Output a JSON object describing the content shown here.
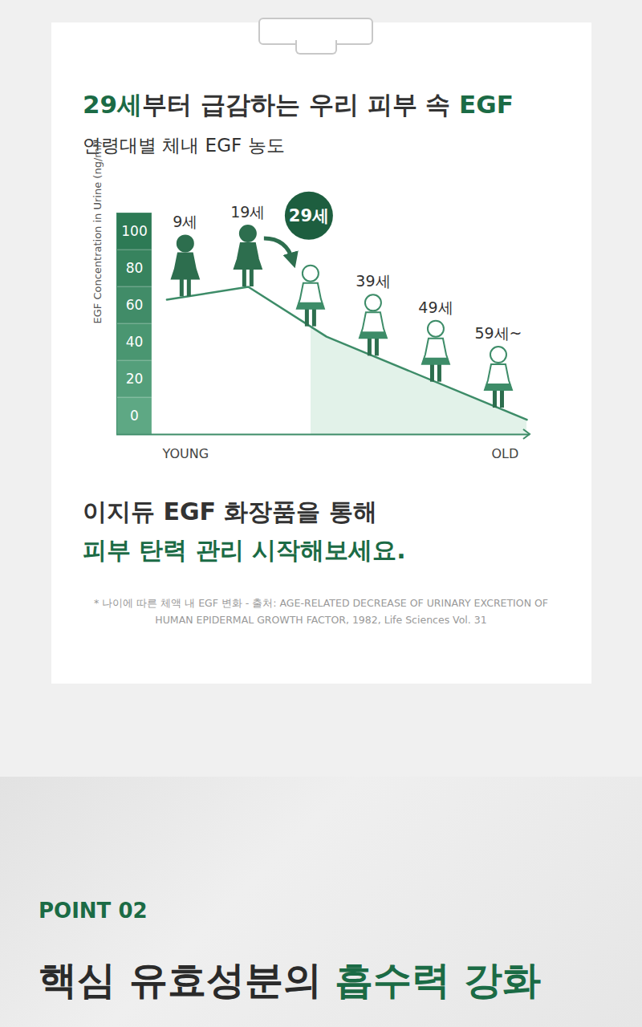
{
  "chart_data": {
    "type": "line",
    "title": "29세부터 급감하는 우리 피부 속 EGF",
    "subtitle": "연령대별 체내 EGF 농도",
    "y_label": "EGF Concentration in Urine (ng/ml)",
    "x": [
      6,
      19,
      31.5,
      63.5
    ],
    "values": [
      63,
      70,
      43,
      -2
    ],
    "color": "#3d8c68",
    "xlim": [
      -2,
      64
    ],
    "xticks": [
      {
        "value": 9,
        "label": "YOUNG"
      },
      {
        "value": 60,
        "label": "OLD"
      }
    ],
    "ylim": [
      -10,
      110
    ],
    "yticks": [
      0,
      20,
      40,
      60,
      80,
      100
    ],
    "annotations": [
      {
        "text": "9세",
        "x": 9
      },
      {
        "text": "19세",
        "x": 19
      },
      {
        "text": "29세",
        "x": 29
      },
      {
        "text": "39세",
        "x": 39
      },
      {
        "text": "49세",
        "x": 49
      },
      {
        "text": "59세~",
        "x": 59
      }
    ]
  },
  "page": {
    "message": [
      "이지듀 EGF 화장품을 통해",
      "피부 탄력 관리 시작해보세요."
    ],
    "source": [
      "* 나이에 따른 체액 내 EGF 변화 - 출처: AGE-RELATED DECREASE OF URINARY EXCRETION OF",
      "HUMAN EPIDERMAL GROWTH FACTOR, 1982, Life Sciences Vol. 31"
    ],
    "section": {
      "label": "POINT 02",
      "heading": [
        "핵심 유효성분의",
        "흡수력 강화"
      ]
    }
  }
}
